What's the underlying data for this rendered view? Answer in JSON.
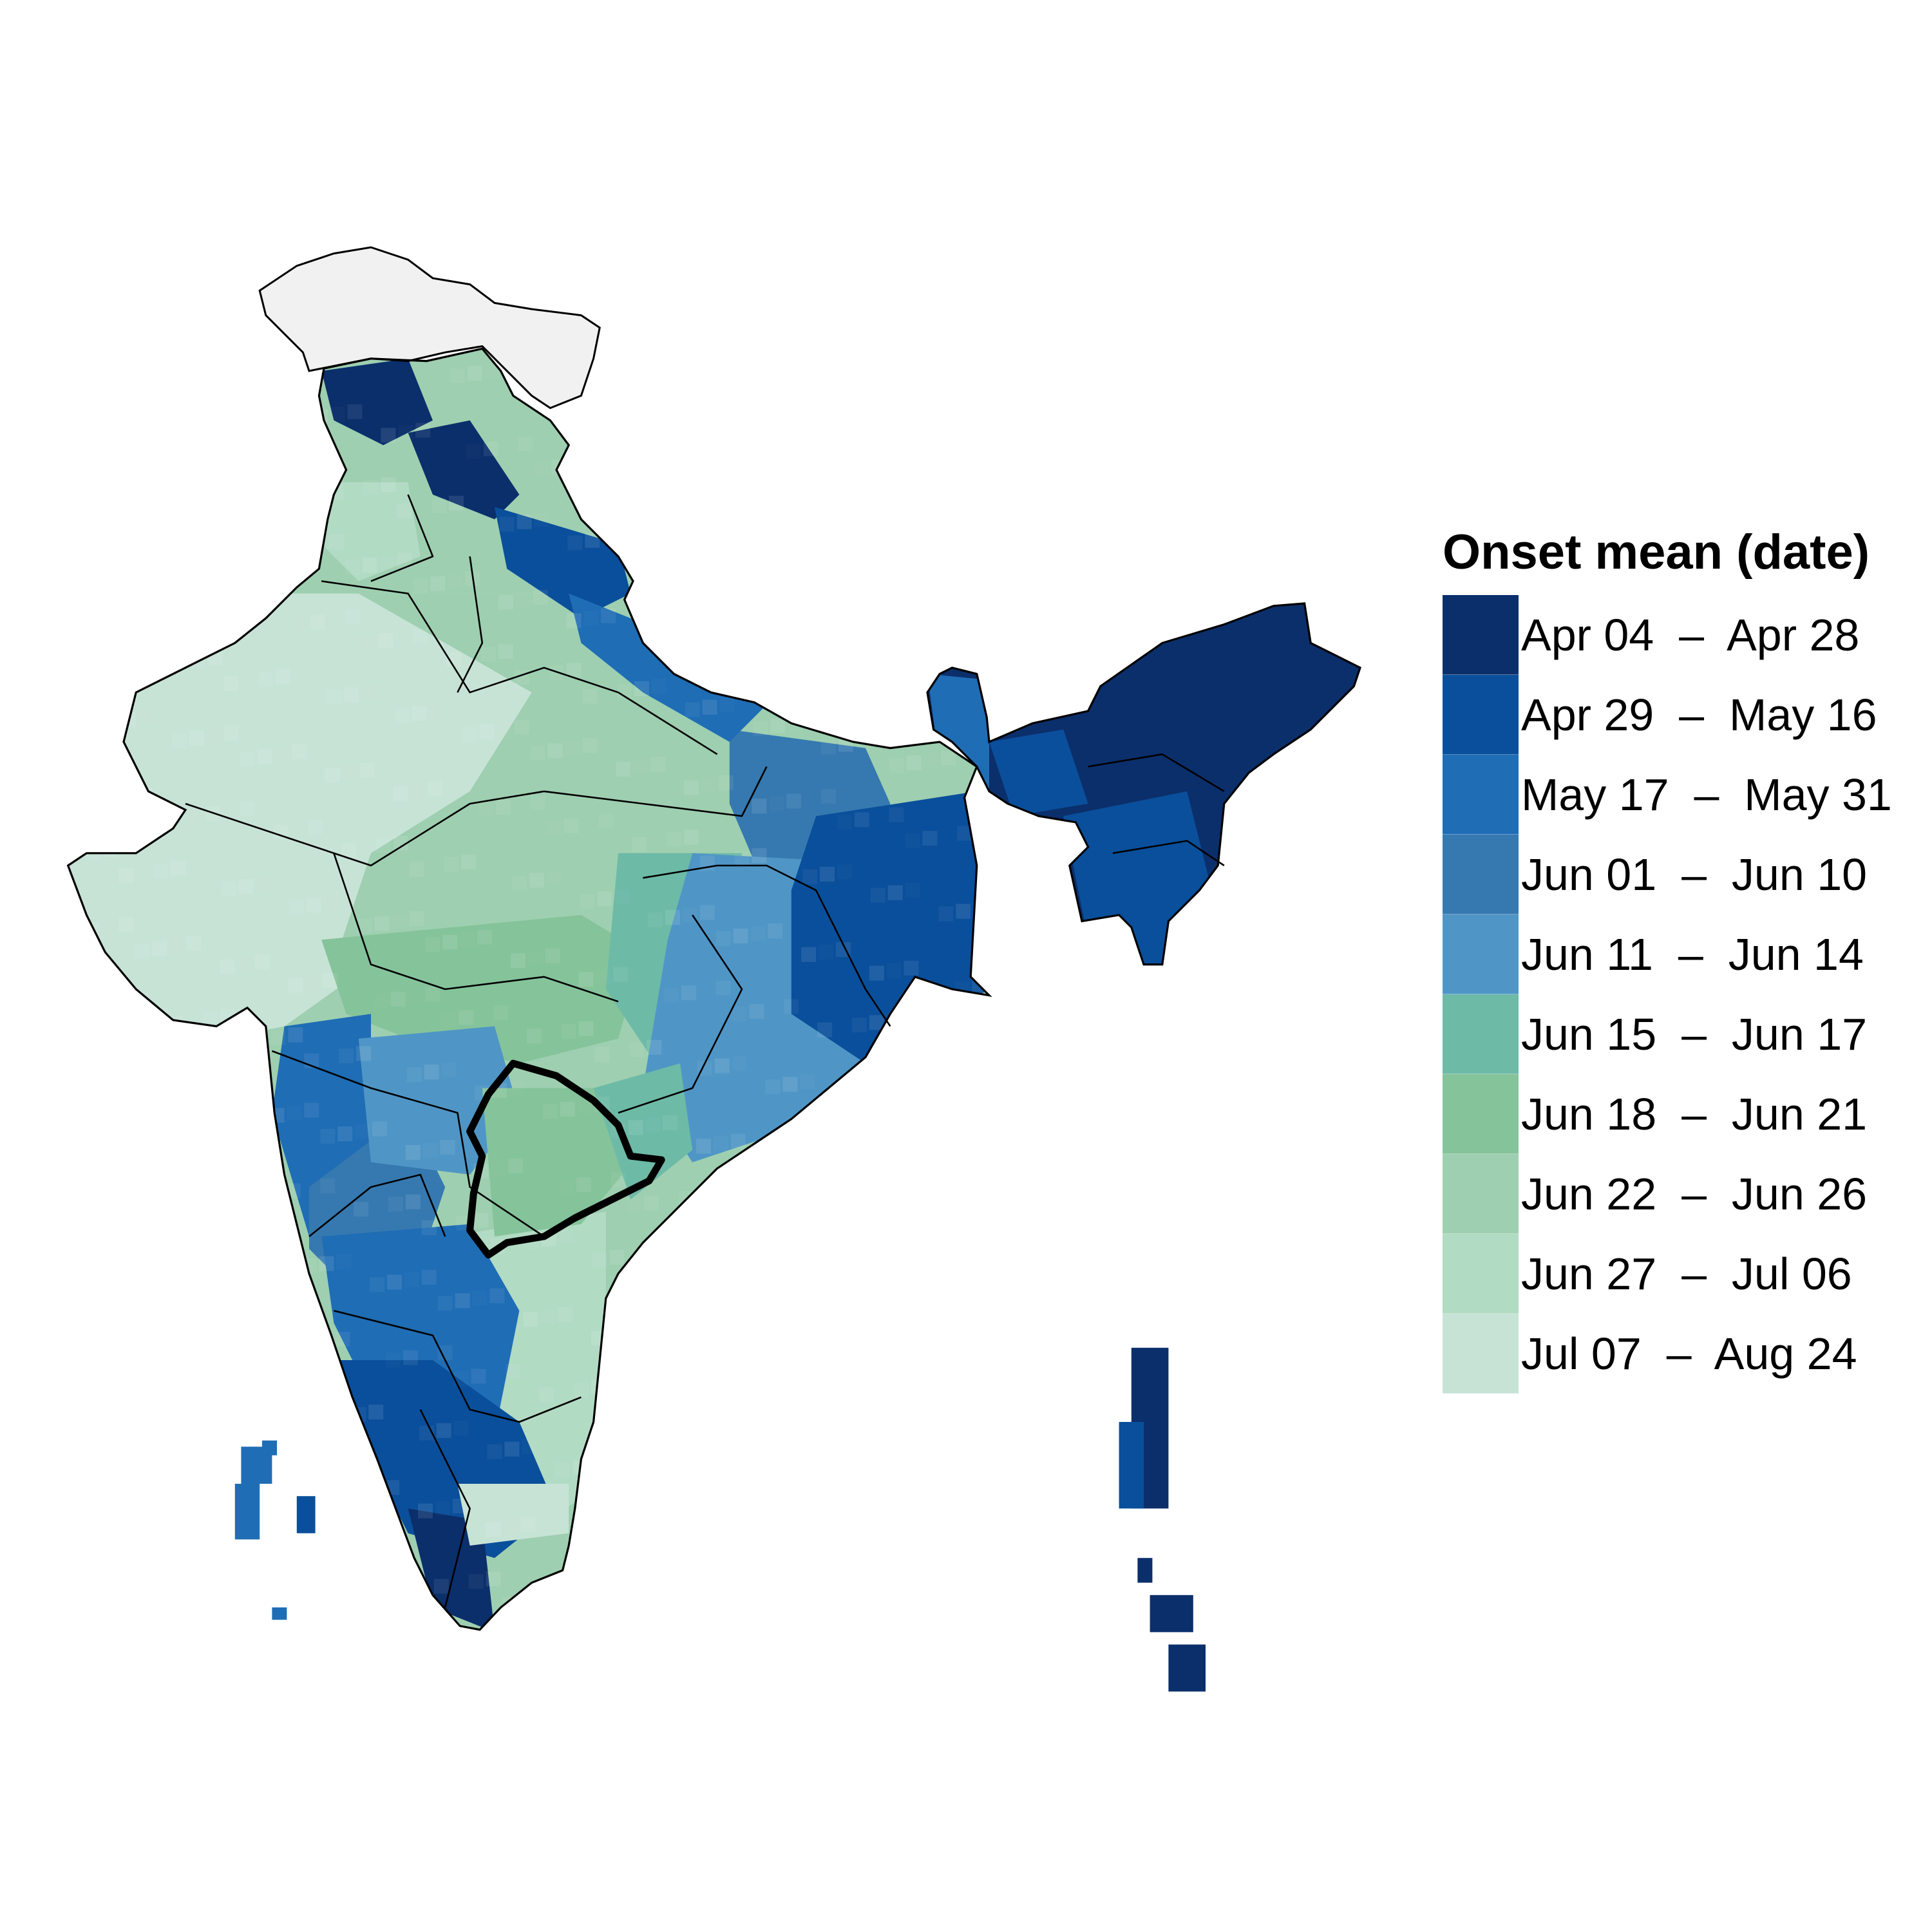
{
  "legend": {
    "title": "Onset mean (date)",
    "classes": [
      {
        "label": "Apr 04  –  Apr 28",
        "color": "#0b2f6b"
      },
      {
        "label": "Apr 29  –  May 16",
        "color": "#0a4f9b"
      },
      {
        "label": "May 17  –  May 31",
        "color": "#1f6db5"
      },
      {
        "label": "Jun 01  –  Jun 10",
        "color": "#3679b0"
      },
      {
        "label": "Jun 11  –  Jun 14",
        "color": "#4f96c6"
      },
      {
        "label": "Jun 15  –  Jun 17",
        "color": "#6dbaa7"
      },
      {
        "label": "Jun 18  –  Jun 21",
        "color": "#85c39a"
      },
      {
        "label": "Jun 22  –  Jun 26",
        "color": "#9ecfb0"
      },
      {
        "label": "Jun 27  –  Jul 06",
        "color": "#b2dbc4"
      },
      {
        "label": "Jul 07  –  Aug 24",
        "color": "#c7e3d6"
      }
    ]
  },
  "map": {
    "no_data_color": "#f1f1f1",
    "highlight_outline_color": "#000000"
  }
}
